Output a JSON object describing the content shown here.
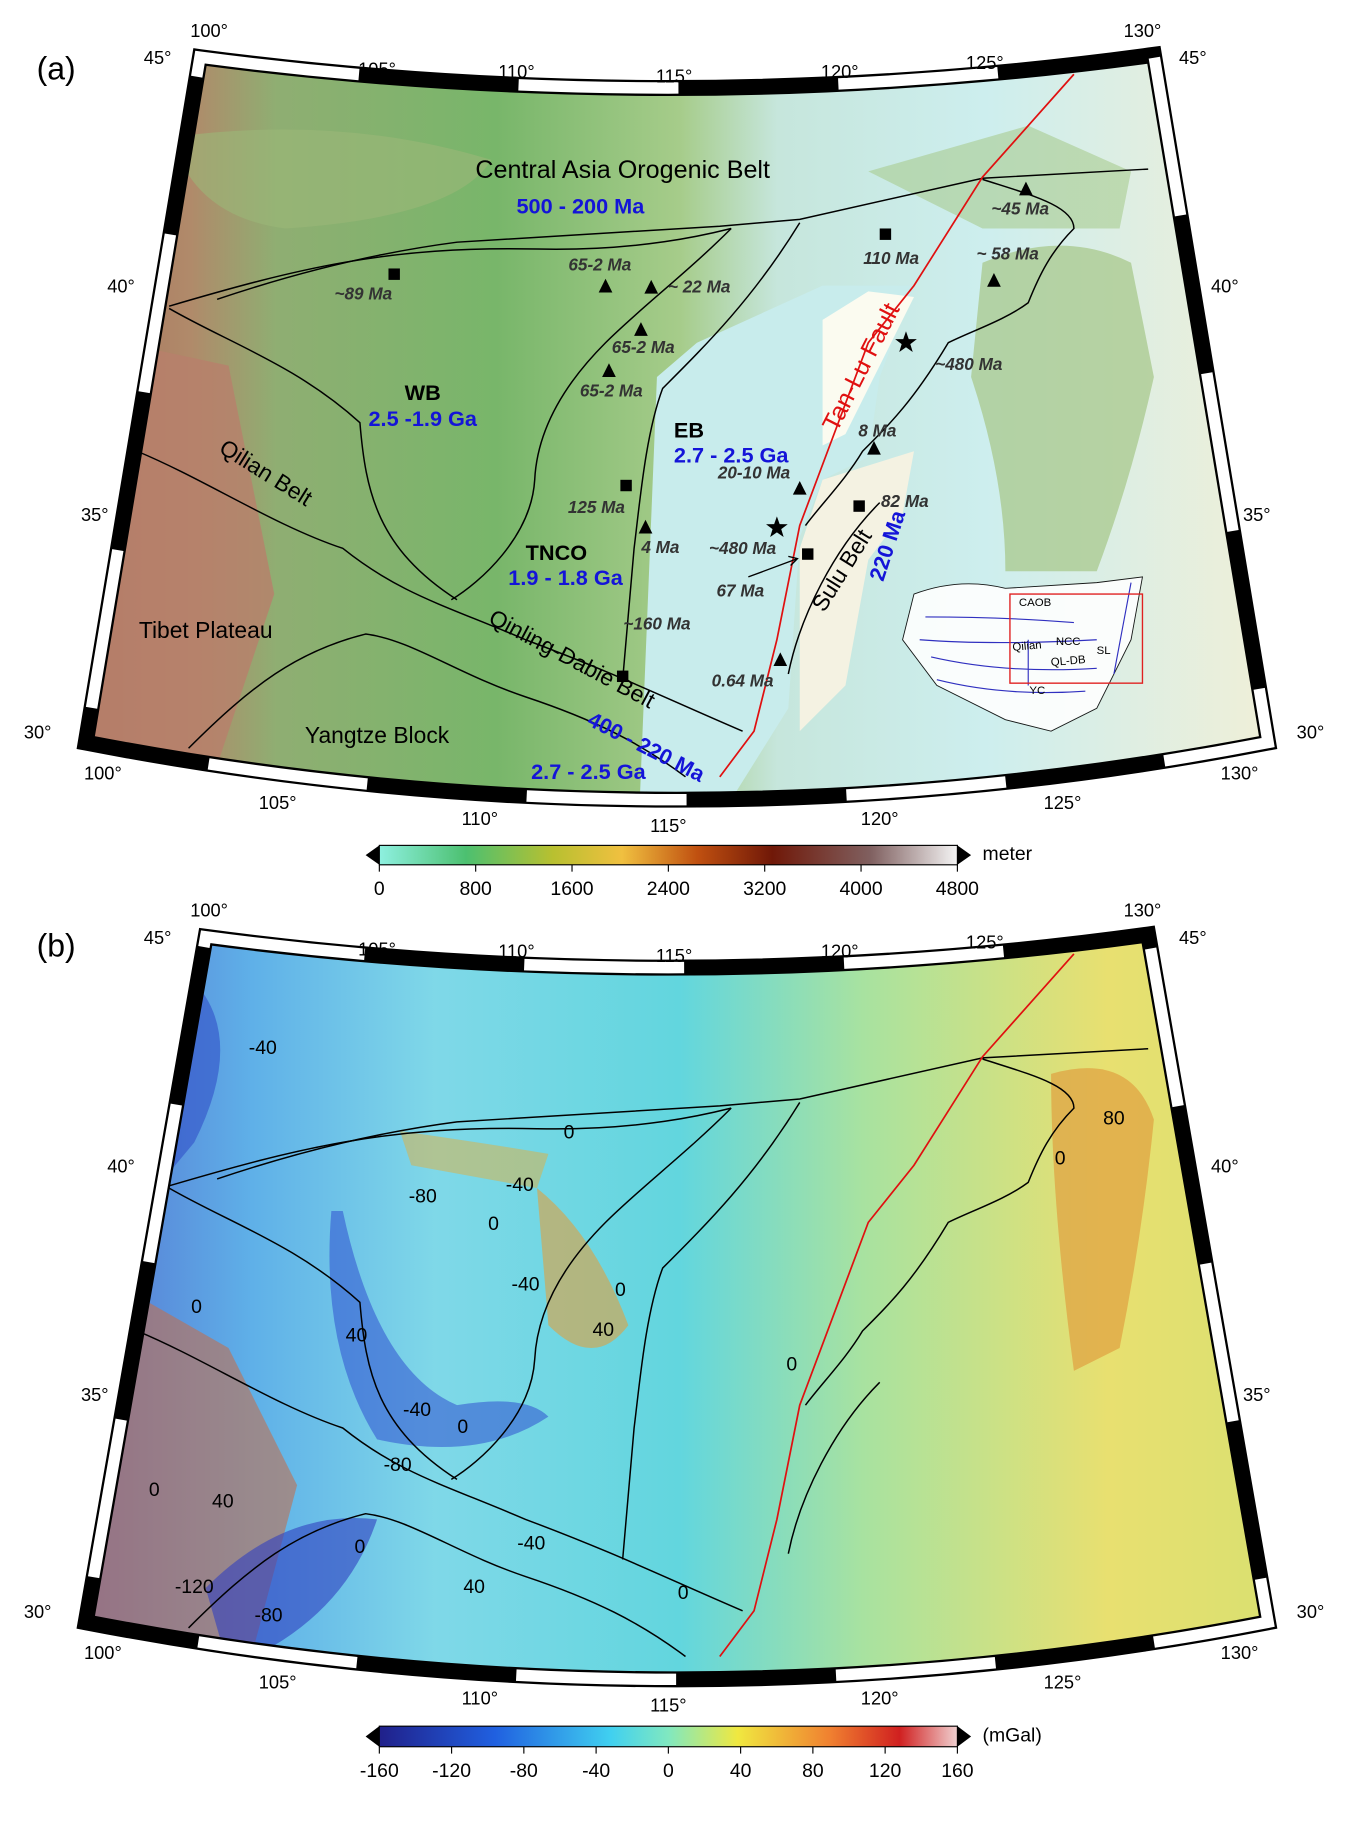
{
  "graticule": {
    "lon": [
      "100°",
      "105°",
      "110°",
      "115°",
      "120°",
      "125°",
      "130°"
    ],
    "lat": [
      "45°",
      "40°",
      "35°",
      "30°"
    ]
  },
  "panel_a": {
    "label": "(a)",
    "annotations": [
      "Central Asia Orogenic Belt",
      "500 - 200 Ma",
      "WB",
      "2.5 -1.9 Ga",
      "Qilian Belt",
      "Tibet Plateau",
      "TNCO",
      "1.9 - 1.8 Ga",
      "Qinling-Dabie Belt",
      "400 - 220 Ma",
      "Yangtze Block",
      "2.7 - 2.5 Ga",
      "EB",
      "2.7 - 2.5 Ga",
      "Tan-Lu Fault",
      "Sulu Belt",
      "220 Ma",
      "~89 Ma",
      "65-2 Ma",
      "~ 22 Ma",
      "65-2 Ma",
      "65-2 Ma",
      "110 Ma",
      "~45 Ma",
      "~ 58 Ma",
      "~480 Ma",
      "8 Ma",
      "20-10 Ma",
      "82 Ma",
      "125 Ma",
      "4 Ma",
      "~480 Ma",
      "67 Ma",
      "~160 Ma",
      "0.64 Ma",
      "CAOB",
      "NCC",
      "Qilian",
      "QL-DB",
      "SL",
      "YC"
    ],
    "colorbar": {
      "lim": [
        0,
        4800
      ],
      "ticks": [
        0,
        800,
        1600,
        2400,
        3200,
        4000,
        4800
      ],
      "unit": "meter"
    }
  },
  "panel_b": {
    "label": "(b)",
    "contour_labels": [
      "-40",
      "0",
      "-80",
      "-40",
      "0",
      "80",
      "0",
      "-40",
      "0",
      "40",
      "0",
      "40",
      "-40",
      "0",
      "0",
      "40",
      "-80",
      "0",
      "-40",
      "40",
      "-120",
      "-80",
      "0",
      "0"
    ],
    "colorbar": {
      "lim": [
        -160,
        160
      ],
      "ticks": [
        -160,
        -120,
        -80,
        -40,
        0,
        40,
        80,
        120,
        160
      ],
      "unit": "(mGal)"
    }
  }
}
